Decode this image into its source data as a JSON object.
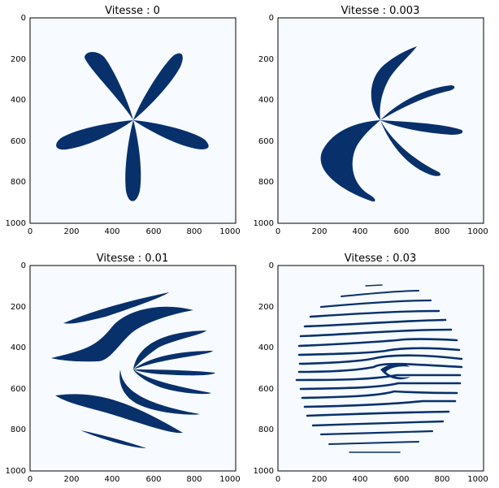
{
  "colors": {
    "background": "#f7fbff",
    "shape": "#08306b"
  },
  "chart_data": [
    {
      "type": "heatmap",
      "title": "Vitesse : 0",
      "x_ticks": [
        "0",
        "200",
        "400",
        "600",
        "800",
        "1000"
      ],
      "y_ticks": [
        "0",
        "200",
        "400",
        "600",
        "800",
        "1000"
      ],
      "xlim": [
        0,
        1000
      ],
      "ylim": [
        1000,
        0
      ],
      "description_values": {
        "petals": 5,
        "center": [
          500,
          500
        ]
      }
    },
    {
      "type": "heatmap",
      "title": "Vitesse : 0.003",
      "x_ticks": [
        "0",
        "200",
        "400",
        "600",
        "800",
        "1000"
      ],
      "y_ticks": [
        "0",
        "200",
        "400",
        "600",
        "800",
        "1000"
      ],
      "xlim": [
        0,
        1000
      ],
      "ylim": [
        1000,
        0
      ],
      "description_values": {
        "petals": 5,
        "center": [
          500,
          500
        ]
      }
    },
    {
      "type": "heatmap",
      "title": "Vitesse : 0.01",
      "x_ticks": [
        "0",
        "200",
        "400",
        "600",
        "800",
        "1000"
      ],
      "y_ticks": [
        "0",
        "200",
        "400",
        "600",
        "800",
        "1000"
      ],
      "xlim": [
        0,
        1000
      ],
      "ylim": [
        1000,
        0
      ]
    },
    {
      "type": "heatmap",
      "title": "Vitesse : 0.03",
      "x_ticks": [
        "0",
        "200",
        "400",
        "600",
        "800",
        "1000"
      ],
      "y_ticks": [
        "0",
        "200",
        "400",
        "600",
        "800",
        "1000"
      ],
      "xlim": [
        0,
        1000
      ],
      "ylim": [
        1000,
        0
      ]
    }
  ]
}
